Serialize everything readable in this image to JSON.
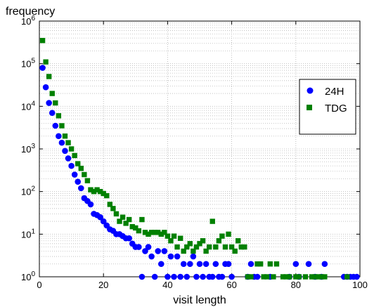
{
  "chart_data": {
    "type": "scatter",
    "xlabel": "visit length",
    "ylabel": "frequency",
    "xlim": [
      0,
      100
    ],
    "ylim": [
      1,
      1000000
    ],
    "yscale": "log",
    "grid": true,
    "legend_position": "right",
    "x_ticks": [
      0,
      20,
      40,
      60,
      80,
      100
    ],
    "y_ticks": [
      {
        "value": 1,
        "base": "10",
        "exp": "0"
      },
      {
        "value": 10,
        "base": "10",
        "exp": "1"
      },
      {
        "value": 100,
        "base": "10",
        "exp": "2"
      },
      {
        "value": 1000,
        "base": "10",
        "exp": "3"
      },
      {
        "value": 10000,
        "base": "10",
        "exp": "4"
      },
      {
        "value": 100000,
        "base": "10",
        "exp": "5"
      },
      {
        "value": 1000000,
        "base": "10",
        "exp": "6"
      }
    ],
    "series": [
      {
        "name": "24H",
        "color": "#0000ff",
        "marker": "circle",
        "points": [
          [
            1,
            80000
          ],
          [
            2,
            28000
          ],
          [
            3,
            12000
          ],
          [
            4,
            7000
          ],
          [
            5,
            3500
          ],
          [
            6,
            2000
          ],
          [
            7,
            1400
          ],
          [
            8,
            900
          ],
          [
            9,
            600
          ],
          [
            10,
            400
          ],
          [
            11,
            250
          ],
          [
            12,
            170
          ],
          [
            13,
            120
          ],
          [
            14,
            70
          ],
          [
            15,
            60
          ],
          [
            16,
            50
          ],
          [
            17,
            30
          ],
          [
            18,
            28
          ],
          [
            19,
            25
          ],
          [
            20,
            20
          ],
          [
            21,
            16
          ],
          [
            22,
            13
          ],
          [
            23,
            12
          ],
          [
            24,
            10
          ],
          [
            25,
            10
          ],
          [
            26,
            9
          ],
          [
            27,
            8
          ],
          [
            28,
            8
          ],
          [
            29,
            6
          ],
          [
            30,
            5
          ],
          [
            31,
            5
          ],
          [
            32,
            1
          ],
          [
            33,
            4
          ],
          [
            34,
            5
          ],
          [
            35,
            3
          ],
          [
            36,
            1
          ],
          [
            37,
            4
          ],
          [
            38,
            2
          ],
          [
            39,
            4
          ],
          [
            40,
            1
          ],
          [
            41,
            3
          ],
          [
            42,
            1
          ],
          [
            43,
            3
          ],
          [
            44,
            1
          ],
          [
            45,
            2
          ],
          [
            46,
            1
          ],
          [
            47,
            2
          ],
          [
            48,
            3
          ],
          [
            49,
            1
          ],
          [
            50,
            2
          ],
          [
            51,
            1
          ],
          [
            52,
            2
          ],
          [
            53,
            1
          ],
          [
            54,
            1
          ],
          [
            55,
            2
          ],
          [
            56,
            1
          ],
          [
            57,
            1
          ],
          [
            58,
            2
          ],
          [
            59,
            2
          ],
          [
            60,
            1
          ],
          [
            65,
            1
          ],
          [
            66,
            2
          ],
          [
            67,
            1
          ],
          [
            68,
            1
          ],
          [
            72,
            1
          ],
          [
            78,
            1
          ],
          [
            80,
            2
          ],
          [
            81,
            1
          ],
          [
            84,
            2
          ],
          [
            86,
            1
          ],
          [
            88,
            1
          ],
          [
            89,
            2
          ],
          [
            95,
            1
          ],
          [
            96,
            1
          ],
          [
            97,
            1
          ],
          [
            98,
            1
          ],
          [
            99,
            1
          ]
        ]
      },
      {
        "name": "TDG",
        "color": "#008000",
        "marker": "square",
        "points": [
          [
            1,
            350000
          ],
          [
            2,
            110000
          ],
          [
            3,
            50000
          ],
          [
            4,
            20000
          ],
          [
            5,
            12000
          ],
          [
            6,
            6000
          ],
          [
            7,
            3500
          ],
          [
            8,
            2000
          ],
          [
            9,
            1400
          ],
          [
            10,
            1000
          ],
          [
            11,
            700
          ],
          [
            12,
            450
          ],
          [
            13,
            350
          ],
          [
            14,
            250
          ],
          [
            15,
            180
          ],
          [
            16,
            110
          ],
          [
            17,
            100
          ],
          [
            18,
            110
          ],
          [
            19,
            100
          ],
          [
            20,
            90
          ],
          [
            21,
            80
          ],
          [
            22,
            50
          ],
          [
            23,
            40
          ],
          [
            24,
            30
          ],
          [
            25,
            20
          ],
          [
            26,
            25
          ],
          [
            27,
            18
          ],
          [
            28,
            22
          ],
          [
            29,
            15
          ],
          [
            30,
            14
          ],
          [
            31,
            12
          ],
          [
            32,
            22
          ],
          [
            33,
            11
          ],
          [
            34,
            10
          ],
          [
            35,
            11
          ],
          [
            36,
            11
          ],
          [
            37,
            11
          ],
          [
            38,
            10
          ],
          [
            39,
            11
          ],
          [
            40,
            9
          ],
          [
            41,
            7
          ],
          [
            42,
            9
          ],
          [
            43,
            5
          ],
          [
            44,
            8
          ],
          [
            45,
            4
          ],
          [
            46,
            5
          ],
          [
            47,
            6
          ],
          [
            48,
            4
          ],
          [
            49,
            5
          ],
          [
            50,
            6
          ],
          [
            51,
            7
          ],
          [
            52,
            4
          ],
          [
            53,
            5
          ],
          [
            54,
            20
          ],
          [
            55,
            5
          ],
          [
            56,
            7
          ],
          [
            57,
            9
          ],
          [
            58,
            5
          ],
          [
            59,
            10
          ],
          [
            60,
            5
          ],
          [
            61,
            4
          ],
          [
            62,
            7
          ],
          [
            63,
            5
          ],
          [
            64,
            5
          ],
          [
            65,
            1
          ],
          [
            66,
            1
          ],
          [
            68,
            2
          ],
          [
            69,
            2
          ],
          [
            70,
            1
          ],
          [
            71,
            1
          ],
          [
            72,
            2
          ],
          [
            73,
            1
          ],
          [
            74,
            2
          ],
          [
            76,
            1
          ],
          [
            77,
            1
          ],
          [
            78,
            1
          ],
          [
            80,
            1
          ],
          [
            81,
            1
          ],
          [
            83,
            1
          ],
          [
            85,
            1
          ],
          [
            86,
            1
          ],
          [
            87,
            1
          ],
          [
            88,
            1
          ],
          [
            89,
            1
          ],
          [
            96,
            1
          ]
        ]
      }
    ]
  }
}
